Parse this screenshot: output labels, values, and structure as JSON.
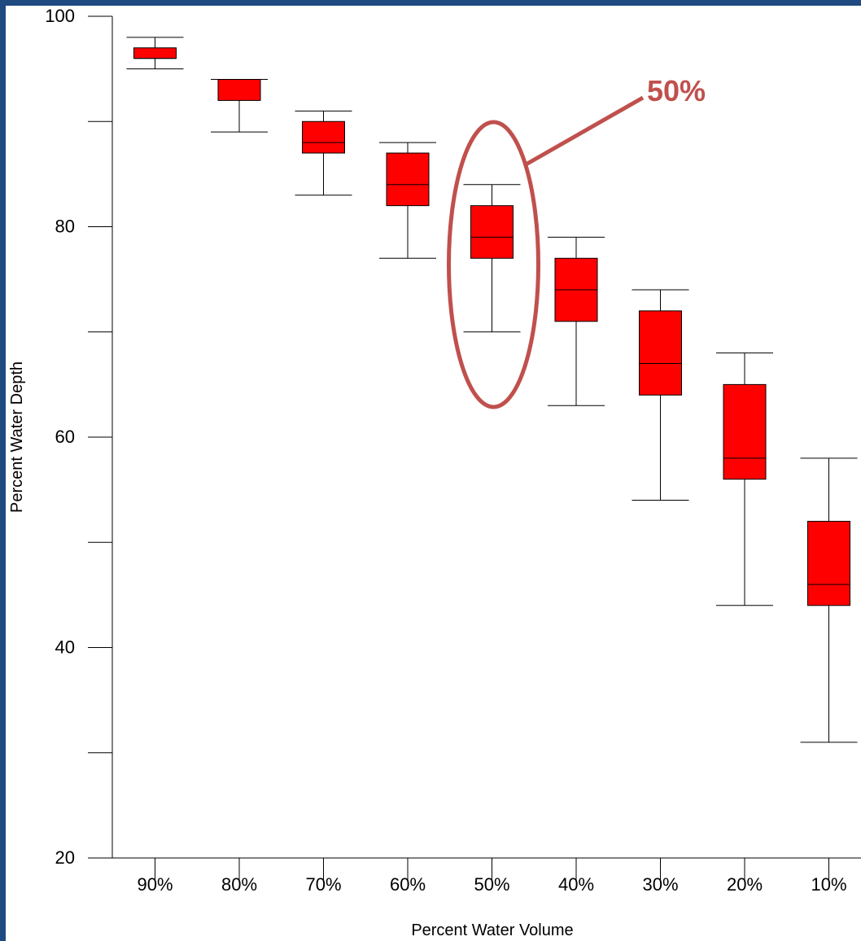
{
  "chart_data": {
    "type": "boxplot",
    "xlabel": "Percent Water Volume",
    "ylabel": "Percent Water Depth",
    "ylim": [
      20,
      100
    ],
    "yticks": [
      20,
      30,
      40,
      50,
      60,
      70,
      80,
      90,
      100
    ],
    "ytick_labels": [
      "20",
      "40",
      "60",
      "80",
      "100"
    ],
    "categories": [
      "90%",
      "80%",
      "70%",
      "60%",
      "50%",
      "40%",
      "30%",
      "20%",
      "10%"
    ],
    "boxes": [
      {
        "category": "90%",
        "whisker_low": 95,
        "q1": 96,
        "median": 96,
        "q3": 97,
        "whisker_high": 98
      },
      {
        "category": "80%",
        "whisker_low": 89,
        "q1": 92,
        "median": 94,
        "q3": 94,
        "whisker_high": 94
      },
      {
        "category": "70%",
        "whisker_low": 83,
        "q1": 87,
        "median": 88,
        "q3": 90,
        "whisker_high": 91
      },
      {
        "category": "60%",
        "whisker_low": 77,
        "q1": 82,
        "median": 84,
        "q3": 87,
        "whisker_high": 88
      },
      {
        "category": "50%",
        "whisker_low": 70,
        "q1": 77,
        "median": 79,
        "q3": 82,
        "whisker_high": 84
      },
      {
        "category": "40%",
        "whisker_low": 63,
        "q1": 71,
        "median": 74,
        "q3": 77,
        "whisker_high": 79
      },
      {
        "category": "30%",
        "whisker_low": 54,
        "q1": 64,
        "median": 67,
        "q3": 72,
        "whisker_high": 74
      },
      {
        "category": "20%",
        "whisker_low": 44,
        "q1": 56,
        "median": 58,
        "q3": 65,
        "whisker_high": 68
      },
      {
        "category": "10%",
        "whisker_low": 31,
        "q1": 44,
        "median": 46,
        "q3": 52,
        "whisker_high": 58
      }
    ],
    "box_color": "#ff0000",
    "annotation": {
      "text": "50%",
      "target_category": "50%",
      "color": "#c0504d"
    }
  },
  "colors": {
    "frame": "#1f4a80",
    "background": "#ffffff",
    "box_fill": "#ff0000",
    "annotation": "#c0504d"
  }
}
